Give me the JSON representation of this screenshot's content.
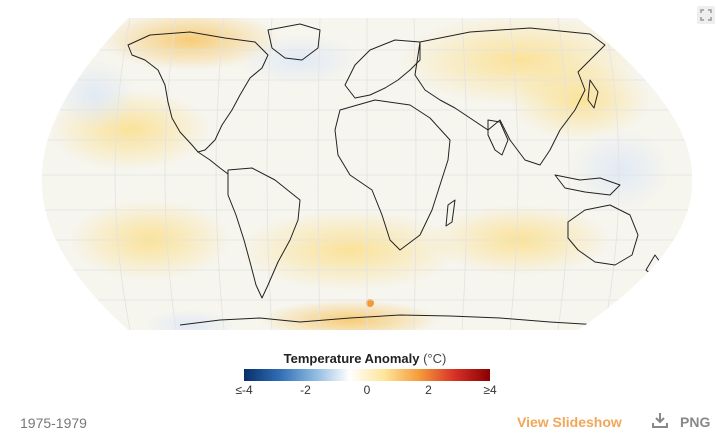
{
  "map": {
    "colors": {
      "ocean_base": "#f6f5ee",
      "warm_light": "#fdf2c4",
      "warm_mid": "#fbe08f",
      "warm_strong": "#f7c25a",
      "hot_spot": "#f29a3a",
      "cool_light": "#e8eef7",
      "coast": "#222222",
      "graticule": "#e2e2e2"
    },
    "projection": "robinson"
  },
  "legend": {
    "title": "Temperature Anomaly",
    "unit": "(°C)",
    "min": -4,
    "max": 4,
    "ticks": [
      {
        "value": -4,
        "label": "≤-4"
      },
      {
        "value": -2,
        "label": "-2"
      },
      {
        "value": 0,
        "label": "0"
      },
      {
        "value": 2,
        "label": "2"
      },
      {
        "value": 4,
        "label": "≥4"
      }
    ],
    "gradient": [
      "#08306b",
      "#2f6db3",
      "#8cb8e0",
      "#ffffff",
      "#fde59a",
      "#f59a3a",
      "#d73027",
      "#8b0000"
    ]
  },
  "footer": {
    "period": "1975-1979",
    "view_slideshow": "View Slideshow",
    "png_label": "PNG",
    "download_icon": "download-icon",
    "accent": "#f2a65a"
  },
  "toolbar": {
    "fullscreen_icon": "fullscreen-icon"
  }
}
